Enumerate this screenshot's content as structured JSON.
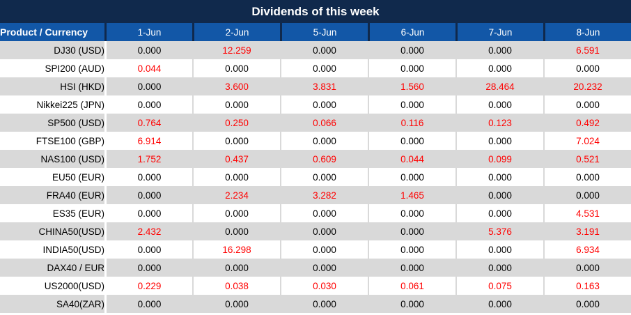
{
  "title": "Dividends of this week",
  "colors": {
    "navy": "#10294C",
    "header_blue": "#1257A7",
    "header_text": "#FFFFFF",
    "row_gray": "#D9D9D9",
    "row_white": "#FFFFFF",
    "value_black": "#000000",
    "value_red": "#FF0000"
  },
  "table": {
    "corner_header": "Product / Currency",
    "date_headers": [
      "1-Jun",
      "2-Jun",
      "5-Jun",
      "6-Jun",
      "7-Jun",
      "8-Jun"
    ],
    "rows": [
      {
        "product": "DJ30 (USD)",
        "values": [
          "0.000",
          "12.259",
          "0.000",
          "0.000",
          "0.000",
          "6.591"
        ]
      },
      {
        "product": "SPI200 (AUD)",
        "values": [
          "0.044",
          "0.000",
          "0.000",
          "0.000",
          "0.000",
          "0.000"
        ]
      },
      {
        "product": "HSI (HKD)",
        "values": [
          "0.000",
          "3.600",
          "3.831",
          "1.560",
          "28.464",
          "20.232"
        ]
      },
      {
        "product": "Nikkei225 (JPN)",
        "values": [
          "0.000",
          "0.000",
          "0.000",
          "0.000",
          "0.000",
          "0.000"
        ]
      },
      {
        "product": "SP500 (USD)",
        "values": [
          "0.764",
          "0.250",
          "0.066",
          "0.116",
          "0.123",
          "0.492"
        ]
      },
      {
        "product": "FTSE100 (GBP)",
        "values": [
          "6.914",
          "0.000",
          "0.000",
          "0.000",
          "0.000",
          "7.024"
        ]
      },
      {
        "product": "NAS100 (USD)",
        "values": [
          "1.752",
          "0.437",
          "0.609",
          "0.044",
          "0.099",
          "0.521"
        ]
      },
      {
        "product": "EU50 (EUR)",
        "values": [
          "0.000",
          "0.000",
          "0.000",
          "0.000",
          "0.000",
          "0.000"
        ]
      },
      {
        "product": "FRA40 (EUR)",
        "values": [
          "0.000",
          "2.234",
          "3.282",
          "1.465",
          "0.000",
          "0.000"
        ]
      },
      {
        "product": "ES35 (EUR)",
        "values": [
          "0.000",
          "0.000",
          "0.000",
          "0.000",
          "0.000",
          "4.531"
        ]
      },
      {
        "product": "CHINA50(USD)",
        "values": [
          "2.432",
          "0.000",
          "0.000",
          "0.000",
          "5.376",
          "3.191"
        ]
      },
      {
        "product": "INDIA50(USD)",
        "values": [
          "0.000",
          "16.298",
          "0.000",
          "0.000",
          "0.000",
          "6.934"
        ]
      },
      {
        "product": "DAX40 / EUR",
        "values": [
          "0.000",
          "0.000",
          "0.000",
          "0.000",
          "0.000",
          "0.000"
        ]
      },
      {
        "product": "US2000(USD)",
        "values": [
          "0.229",
          "0.038",
          "0.030",
          "0.061",
          "0.075",
          "0.163"
        ]
      },
      {
        "product": "SA40(ZAR)",
        "values": [
          "0.000",
          "0.000",
          "0.000",
          "0.000",
          "0.000",
          "0.000"
        ]
      }
    ]
  }
}
